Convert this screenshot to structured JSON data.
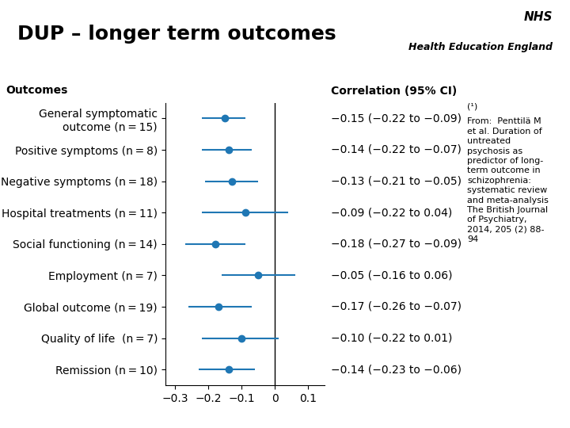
{
  "chart_data": {
    "type": "forest",
    "title": "DUP – longer term outcomes",
    "categories": [
      "General symptomatic\noutcome (n = 15)",
      "Positive symptoms (n = 8)",
      "Negative symptoms (n = 18)",
      "Hospital treatments (n = 11)",
      "Social functioning (n = 14)",
      "Employment (n = 7)",
      "Global outcome (n = 19)",
      "Quality of life  (n = 7)",
      "Remission (n = 10)"
    ],
    "values": [
      -0.15,
      -0.14,
      -0.13,
      -0.09,
      -0.18,
      -0.05,
      -0.17,
      -0.1,
      -0.14
    ],
    "ci_low": [
      -0.22,
      -0.22,
      -0.21,
      -0.22,
      -0.27,
      -0.16,
      -0.26,
      -0.22,
      -0.23
    ],
    "ci_high": [
      -0.09,
      -0.07,
      -0.05,
      0.04,
      -0.09,
      0.06,
      -0.07,
      0.01,
      -0.06
    ],
    "value_labels": [
      "−0.15 (−0.22 to −0.09)",
      "−0.14 (−0.22 to −0.07)",
      "−0.13 (−0.21 to −0.05)",
      "−0.09 (−0.22 to 0.04)",
      "−0.18 (−0.27 to −0.09)",
      "−0.05 (−0.16 to 0.06)",
      "−0.17 (−0.26 to −0.07)",
      "−0.10 (−0.22 to 0.01)",
      "−0.14 (−0.23 to −0.06)"
    ],
    "ref_line": 0,
    "xlim": [
      -0.33,
      0.15
    ],
    "xticks": [
      {
        "value": -0.3,
        "label": "−0.3"
      },
      {
        "value": -0.2,
        "label": "−0.2"
      },
      {
        "value": -0.1,
        "label": "−0.1"
      },
      0,
      0.1
    ],
    "annotations": [
      "Outcomes",
      "Correlation (95% CI)",
      "(¹)",
      "From:  Penttilä M\net al. Duration of\nuntreated\npsychosis as\npredictor of long-\nterm outcome in\nschizophrenia:\nsystematic review\nand meta-analysis\nThe British Journal\nof Psychiatry,\n2014, 205 (2) 88-\n94",
      "NHS",
      "Health Education England"
    ]
  }
}
